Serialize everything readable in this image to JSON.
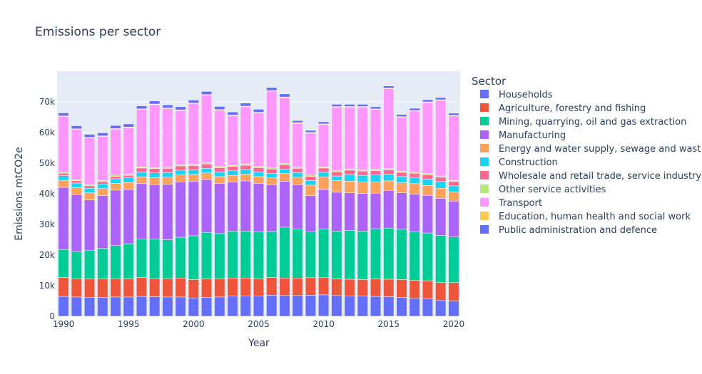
{
  "chart_data": {
    "type": "bar",
    "stacked": true,
    "title": "Emissions per sector",
    "xlabel": "Year",
    "ylabel": "Emissions mtCO2e",
    "legend_title": "Sector",
    "legend_position": "right",
    "grid": true,
    "ylim": [
      0,
      80000
    ],
    "xlim": [
      1990,
      2020
    ],
    "x_ticks": [
      1990,
      1995,
      2000,
      2005,
      2010,
      2015,
      2020
    ],
    "y_ticks": [
      0,
      10000,
      20000,
      30000,
      40000,
      50000,
      60000,
      70000
    ],
    "y_tick_labels": [
      "0",
      "10k",
      "20k",
      "30k",
      "40k",
      "50k",
      "60k",
      "70k"
    ],
    "categories": [
      1990,
      1991,
      1992,
      1993,
      1994,
      1995,
      1996,
      1997,
      1998,
      1999,
      2000,
      2001,
      2002,
      2003,
      2004,
      2005,
      2006,
      2007,
      2008,
      2009,
      2010,
      2011,
      2012,
      2013,
      2014,
      2015,
      2016,
      2017,
      2018,
      2019,
      2020
    ],
    "series": [
      {
        "name": "Public administration and defence",
        "color": "#636efa",
        "values": [
          6500,
          6300,
          6200,
          6200,
          6300,
          6300,
          6500,
          6400,
          6300,
          6300,
          6000,
          6200,
          6300,
          6600,
          6700,
          6600,
          6900,
          6800,
          6800,
          6900,
          7000,
          6800,
          6700,
          6600,
          6500,
          6400,
          6200,
          5900,
          5700,
          5200,
          5000
        ]
      },
      {
        "name": "Education, human health and social work",
        "color": "#ef553b",
        "values": [
          6200,
          6000,
          6000,
          6000,
          6000,
          5900,
          6200,
          5900,
          6000,
          6200,
          6000,
          6000,
          6000,
          5900,
          5800,
          5700,
          5800,
          5700,
          5700,
          5700,
          5600,
          5400,
          5400,
          5400,
          5700,
          5700,
          5800,
          5800,
          5900,
          5800,
          6000
        ]
      },
      {
        "name": "Other service activities",
        "color": "#00cc96",
        "values": [
          9100,
          8900,
          9400,
          10000,
          10800,
          11500,
          12500,
          12900,
          12700,
          13300,
          14300,
          15200,
          14700,
          15300,
          15300,
          15300,
          15000,
          16600,
          16000,
          14900,
          15900,
          15600,
          15900,
          15800,
          16400,
          16700,
          16400,
          15900,
          15600,
          15400,
          14900
        ]
      },
      {
        "name": "Construction",
        "color": "#ab63fa",
        "values": [
          20300,
          18500,
          16400,
          17200,
          18100,
          17700,
          18100,
          17800,
          18100,
          18100,
          17800,
          17200,
          16400,
          16000,
          16400,
          15800,
          15300,
          15000,
          14500,
          11900,
          12900,
          12700,
          12300,
          12300,
          11600,
          12300,
          11900,
          12300,
          12300,
          12100,
          11700
        ]
      },
      {
        "name": "Manufacturing",
        "color": "#ffa15a",
        "values": [
          2300,
          2300,
          2300,
          2300,
          2200,
          2300,
          2200,
          2300,
          2300,
          2300,
          2200,
          2200,
          2200,
          2200,
          2200,
          2200,
          2200,
          2500,
          2400,
          3400,
          4100,
          3800,
          3800,
          3700,
          3700,
          3100,
          3300,
          3400,
          3200,
          3300,
          3000
        ]
      },
      {
        "name": "Wholesale and retail trade, service industry",
        "color": "#19d3f3",
        "values": [
          1500,
          1500,
          1500,
          1500,
          1500,
          1500,
          1500,
          1500,
          1500,
          1500,
          1500,
          1500,
          1500,
          1500,
          1500,
          1500,
          1500,
          1500,
          1500,
          1500,
          1500,
          1500,
          2200,
          2200,
          2200,
          2200,
          2000,
          2000,
          2100,
          2200,
          2000
        ]
      },
      {
        "name": "Energy and water supply, sewage and waste",
        "color": "#ff6692",
        "values": [
          800,
          800,
          800,
          800,
          800,
          800,
          1400,
          1400,
          1400,
          1400,
          1400,
          1400,
          1400,
          1400,
          1400,
          1400,
          1400,
          1400,
          1400,
          1400,
          1400,
          1400,
          1400,
          1400,
          1400,
          1400,
          1400,
          1400,
          1400,
          1400,
          1400
        ]
      },
      {
        "name": "Mining, quarrying, oil and gas extraction",
        "color": "#b6e880",
        "values": [
          400,
          400,
          400,
          400,
          400,
          400,
          400,
          400,
          400,
          400,
          400,
          400,
          400,
          400,
          400,
          400,
          400,
          400,
          400,
          400,
          400,
          400,
          400,
          400,
          400,
          400,
          400,
          400,
          400,
          400,
          400
        ]
      },
      {
        "name": "Agriculture, forestry and fishing",
        "color": "#ff97ff",
        "values": [
          18100,
          16300,
          15200,
          14300,
          15000,
          15200,
          18700,
          20500,
          19100,
          17700,
          19800,
          22100,
          18400,
          16200,
          18700,
          17500,
          25000,
          21500,
          14300,
          13700,
          13800,
          20700,
          20200,
          20500,
          19600,
          26100,
          17600,
          19900,
          23200,
          24700,
          21000
        ]
      },
      {
        "name": "Transport",
        "color": "#fecb52",
        "values": [
          200,
          200,
          200,
          200,
          200,
          200,
          200,
          200,
          200,
          200,
          200,
          200,
          200,
          200,
          200,
          200,
          200,
          200,
          200,
          200,
          200,
          200,
          200,
          200,
          200,
          200,
          200,
          200,
          200,
          200,
          200
        ]
      },
      {
        "name": "Households",
        "color": "#636efa",
        "values": [
          1000,
          1000,
          1000,
          1000,
          1000,
          1000,
          1000,
          1000,
          1000,
          1000,
          1000,
          1000,
          1000,
          1000,
          1000,
          1000,
          1000,
          1000,
          700,
          700,
          700,
          700,
          700,
          700,
          700,
          700,
          700,
          700,
          700,
          700,
          700
        ]
      }
    ],
    "legend_items": [
      {
        "label": "Households",
        "color": "#636efa"
      },
      {
        "label": "Agriculture, forestry and fishing",
        "color": "#ef553b"
      },
      {
        "label": "Mining, quarrying, oil and gas extraction",
        "color": "#00cc96"
      },
      {
        "label": "Manufacturing",
        "color": "#ab63fa"
      },
      {
        "label": "Energy and water supply, sewage and wast",
        "color": "#ffa15a"
      },
      {
        "label": "Construction",
        "color": "#19d3f3"
      },
      {
        "label": "Wholesale and retail trade, service industry",
        "color": "#ff6692"
      },
      {
        "label": "Other service activities",
        "color": "#b6e880"
      },
      {
        "label": "Transport",
        "color": "#ff97ff"
      },
      {
        "label": "Education, human health and social work",
        "color": "#fecb52"
      },
      {
        "label": "Public administration and defence",
        "color": "#636efa"
      }
    ]
  }
}
